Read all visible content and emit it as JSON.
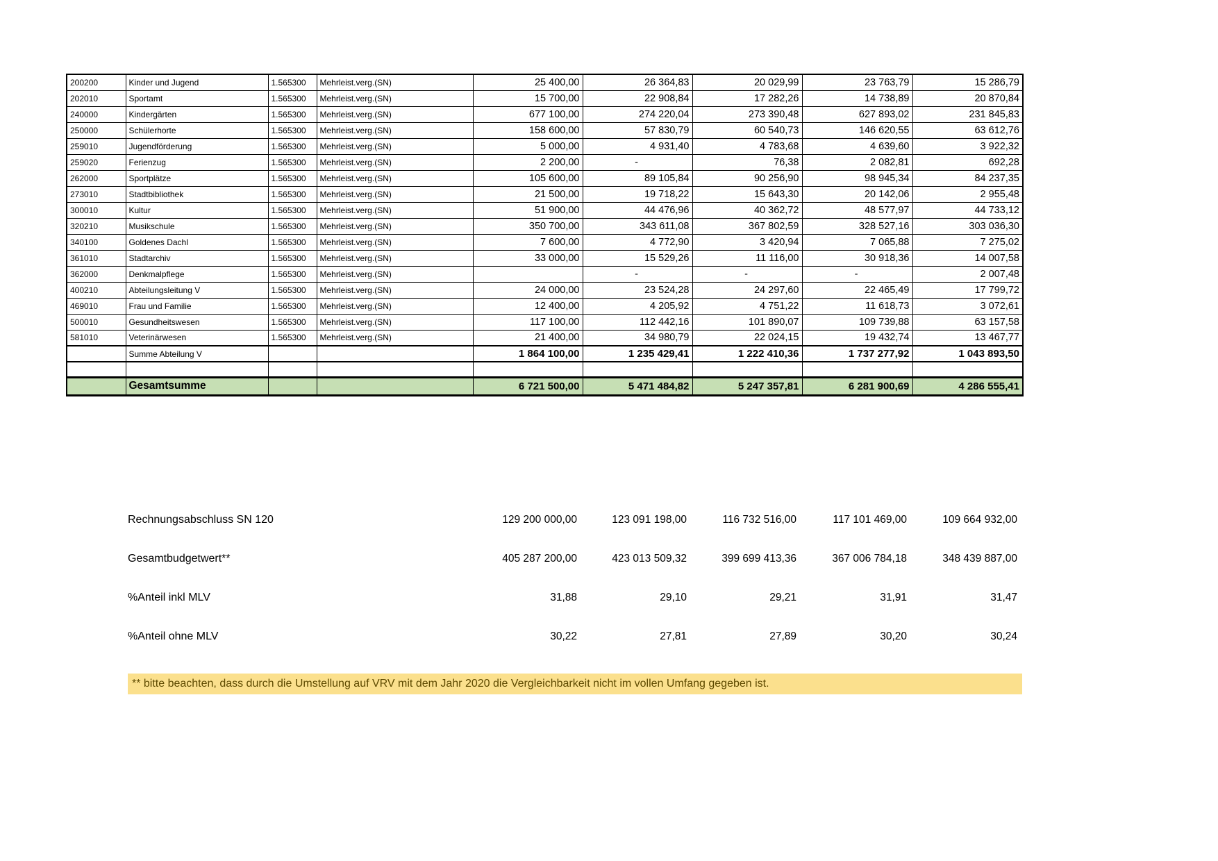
{
  "colors": {
    "total_row_bg": "#c6dfb4",
    "note_bg": "#fbe08d",
    "note_text": "#5e4a00",
    "border": "#000000"
  },
  "table": {
    "rows": [
      {
        "code": "200200",
        "name": "Kinder und Jugend",
        "konto": "1.565300",
        "desc": "Mehrleist.verg.(SN)",
        "values": [
          "25 400,00",
          "26 364,83",
          "20 029,99",
          "23 763,79",
          "15 286,79"
        ]
      },
      {
        "code": "202010",
        "name": "Sportamt",
        "konto": "1.565300",
        "desc": "Mehrleist.verg.(SN)",
        "values": [
          "15 700,00",
          "22 908,84",
          "17 282,26",
          "14 738,89",
          "20 870,84"
        ]
      },
      {
        "code": "240000",
        "name": "Kindergärten",
        "konto": "1.565300",
        "desc": "Mehrleist.verg.(SN)",
        "values": [
          "677 100,00",
          "274 220,04",
          "273 390,48",
          "627 893,02",
          "231 845,83"
        ]
      },
      {
        "code": "250000",
        "name": "Schülerhorte",
        "konto": "1.565300",
        "desc": "Mehrleist.verg.(SN)",
        "values": [
          "158 600,00",
          "57 830,79",
          "60 540,73",
          "146 620,55",
          "63 612,76"
        ]
      },
      {
        "code": "259010",
        "name": "Jugendförderung",
        "konto": "1.565300",
        "desc": "Mehrleist.verg.(SN)",
        "values": [
          "5 000,00",
          "4 931,40",
          "4 783,68",
          "4 639,60",
          "3 922,32"
        ]
      },
      {
        "code": "259020",
        "name": "Ferienzug",
        "konto": "1.565300",
        "desc": "Mehrleist.verg.(SN)",
        "values": [
          "2 200,00",
          "-",
          "76,38",
          "2 082,81",
          "692,28"
        ]
      },
      {
        "code": "262000",
        "name": "Sportplätze",
        "konto": "1.565300",
        "desc": "Mehrleist.verg.(SN)",
        "values": [
          "105 600,00",
          "89 105,84",
          "90 256,90",
          "98 945,34",
          "84 237,35"
        ]
      },
      {
        "code": "273010",
        "name": "Stadtbibliothek",
        "konto": "1.565300",
        "desc": "Mehrleist.verg.(SN)",
        "values": [
          "21 500,00",
          "19 718,22",
          "15 643,30",
          "20 142,06",
          "2 955,48"
        ]
      },
      {
        "code": "300010",
        "name": "Kultur",
        "konto": "1.565300",
        "desc": "Mehrleist.verg.(SN)",
        "values": [
          "51 900,00",
          "44 476,96",
          "40 362,72",
          "48 577,97",
          "44 733,12"
        ]
      },
      {
        "code": "320210",
        "name": "Musikschule",
        "konto": "1.565300",
        "desc": "Mehrleist.verg.(SN)",
        "values": [
          "350 700,00",
          "343 611,08",
          "367 802,59",
          "328 527,16",
          "303 036,30"
        ]
      },
      {
        "code": "340100",
        "name": "Goldenes Dachl",
        "konto": "1.565300",
        "desc": "Mehrleist.verg.(SN)",
        "values": [
          "7 600,00",
          "4 772,90",
          "3 420,94",
          "7 065,88",
          "7 275,02"
        ]
      },
      {
        "code": "361010",
        "name": "Stadtarchiv",
        "konto": "1.565300",
        "desc": "Mehrleist.verg.(SN)",
        "values": [
          "33 000,00",
          "15 529,26",
          "11 116,00",
          "30 918,36",
          "14 007,58"
        ]
      },
      {
        "code": "362000",
        "name": "Denkmalpflege",
        "konto": "1.565300",
        "desc": "Mehrleist.verg.(SN)",
        "values": [
          "",
          "-",
          "-",
          "-",
          "2 007,48"
        ]
      },
      {
        "code": "400210",
        "name": "Abteilungsleitung V",
        "konto": "1.565300",
        "desc": "Mehrleist.verg.(SN)",
        "values": [
          "24 000,00",
          "23 524,28",
          "24 297,60",
          "22 465,49",
          "17 799,72"
        ]
      },
      {
        "code": "469010",
        "name": "Frau und Familie",
        "konto": "1.565300",
        "desc": "Mehrleist.verg.(SN)",
        "values": [
          "12 400,00",
          "4 205,92",
          "4 751,22",
          "11 618,73",
          "3 072,61"
        ]
      },
      {
        "code": "500010",
        "name": "Gesundheitswesen",
        "konto": "1.565300",
        "desc": "Mehrleist.verg.(SN)",
        "values": [
          "117 100,00",
          "112 442,16",
          "101 890,07",
          "109 739,88",
          "63 157,58"
        ]
      },
      {
        "code": "581010",
        "name": "Veterinärwesen",
        "konto": "1.565300",
        "desc": "Mehrleist.verg.(SN)",
        "values": [
          "21 400,00",
          "34 980,79",
          "22 024,15",
          "19 432,74",
          "13 467,77"
        ]
      }
    ],
    "sum_row": {
      "label": "Summe Abteilung V",
      "values": [
        "1 864 100,00",
        "1 235 429,41",
        "1 222 410,36",
        "1 737 277,92",
        "1 043 893,50"
      ]
    },
    "total_row": {
      "label": "Gesamtsumme",
      "values": [
        "6 721 500,00",
        "5 471 484,82",
        "5 247 357,81",
        "6 281 900,69",
        "4 286 555,41"
      ]
    }
  },
  "summary": {
    "rows": [
      {
        "label": "Rechnungsabschluss SN 120",
        "values": [
          "129 200 000,00",
          "123 091 198,00",
          "116 732 516,00",
          "117 101 469,00",
          "109 664 932,00"
        ]
      },
      {
        "label": "Gesamtbudgetwert**",
        "values": [
          "405 287 200,00",
          "423 013 509,32",
          "399 699 413,36",
          "367 006 784,18",
          "348 439 887,00"
        ]
      },
      {
        "label": "%Anteil inkl MLV",
        "values": [
          "31,88",
          "29,10",
          "29,21",
          "31,91",
          "31,47"
        ]
      },
      {
        "label": "%Anteil ohne MLV",
        "values": [
          "30,22",
          "27,81",
          "27,89",
          "30,20",
          "30,24"
        ]
      }
    ]
  },
  "note": {
    "text": "** bitte beachten, dass durch die Umstellung auf VRV mit dem Jahr 2020 die Vergleichbarkeit nicht im vollen Umfang gegeben ist."
  }
}
